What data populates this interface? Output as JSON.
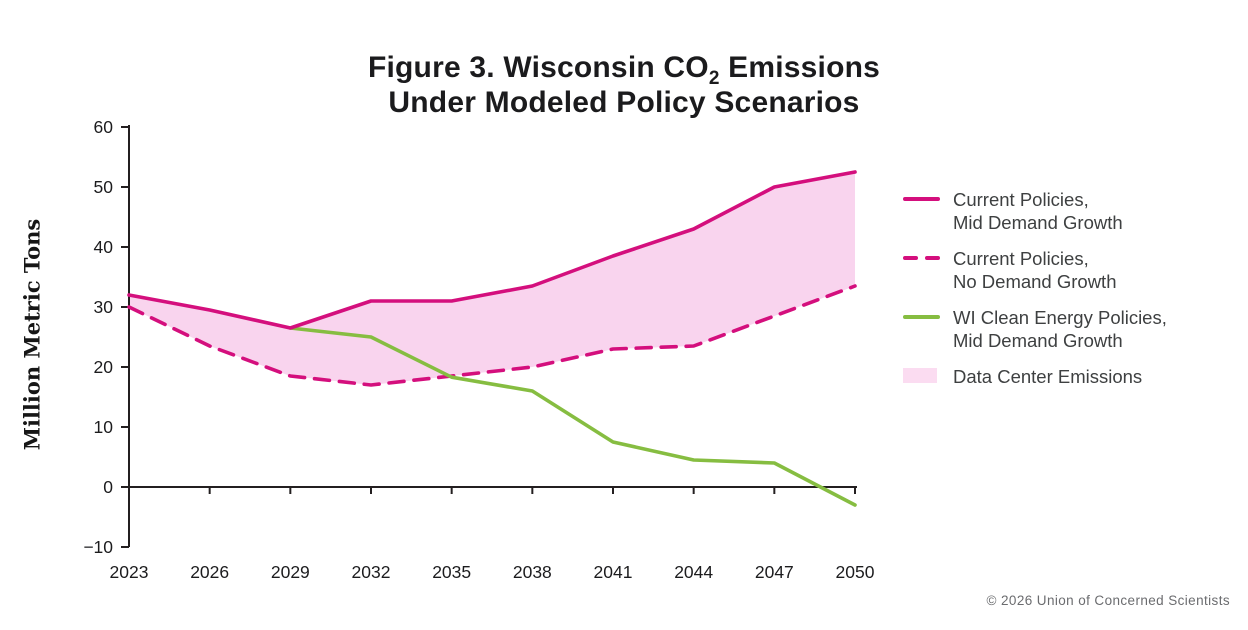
{
  "title": {
    "line1_pre": "Figure 3. Wisconsin CO",
    "line1_sub": "2",
    "line1_post": " Emissions",
    "line2": "Under Modeled Policy Scenarios"
  },
  "y_axis_title": "Million Metric Tons",
  "copyright": "© 2026 Union of Concerned Scientists",
  "colors": {
    "magenta": "#d40f7d",
    "green": "#86bd41",
    "band_pink": "#f9d4ee",
    "axis_black": "#231f20",
    "legend_text": "#3e4041",
    "copyright_gray": "#6b6c6f"
  },
  "legend": {
    "items": [
      {
        "swatch": "line-solid-magenta",
        "line1": "Current Policies,",
        "line2": "Mid Demand Growth"
      },
      {
        "swatch": "line-dashed-magenta",
        "line1": "Current Policies,",
        "line2": "No Demand Growth"
      },
      {
        "swatch": "line-solid-green",
        "line1": "WI Clean Energy Policies,",
        "line2": "Mid Demand Growth"
      },
      {
        "swatch": "fill-pink",
        "line1": "Data Center Emissions",
        "line2": ""
      }
    ]
  },
  "chart_data": {
    "type": "line",
    "title": "Figure 3. Wisconsin CO2 Emissions Under Modeled Policy Scenarios",
    "xlabel": "",
    "ylabel": "Million Metric Tons",
    "x": [
      2023,
      2026,
      2029,
      2032,
      2035,
      2038,
      2041,
      2044,
      2047,
      2050
    ],
    "x_tick_labels": [
      "2023",
      "2026",
      "2029",
      "2032",
      "2035",
      "2038",
      "2041",
      "2044",
      "2047",
      "2050"
    ],
    "ylim": [
      -10,
      60
    ],
    "y_ticks": [
      60,
      50,
      40,
      30,
      20,
      10,
      0,
      -10
    ],
    "y_tick_labels": [
      "60",
      "50",
      "40",
      "30",
      "20",
      "10",
      "0",
      "−10"
    ],
    "grid": false,
    "legend_position": "right",
    "series": [
      {
        "name": "Current Policies, Mid Demand Growth",
        "style": "solid",
        "color": "#d40f7d",
        "values": [
          32,
          29.5,
          26.5,
          31,
          31,
          33.5,
          38.5,
          43,
          50,
          52.5
        ]
      },
      {
        "name": "Current Policies, No Demand Growth",
        "style": "dashed",
        "color": "#d40f7d",
        "values": [
          30,
          23.5,
          18.5,
          17,
          18.5,
          20,
          23,
          23.5,
          28.5,
          33.5
        ]
      },
      {
        "name": "WI Clean Energy Policies, Mid Demand Growth",
        "style": "solid",
        "color": "#86bd41",
        "values": [
          null,
          null,
          26.5,
          25,
          18.3,
          16,
          7.5,
          4.5,
          4,
          -3
        ]
      }
    ],
    "area_band": {
      "name": "Data Center Emissions",
      "upper_series": "Current Policies, Mid Demand Growth",
      "lower_series": "Current Policies, No Demand Growth",
      "color": "#f9d4ee"
    }
  }
}
